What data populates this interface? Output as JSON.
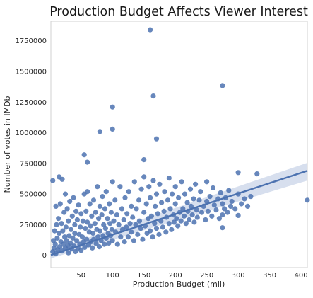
{
  "chart_data": {
    "type": "scatter",
    "title": "Production Budget Affects Viewer Interest",
    "xlabel": "Production Budget (mil)",
    "ylabel": "Number of votes in IMDb",
    "xlim": [
      2,
      410
    ],
    "ylim": [
      -100000,
      1910000
    ],
    "xticks": [
      50,
      100,
      150,
      200,
      250,
      300,
      350,
      400
    ],
    "yticks": [
      0,
      250000,
      500000,
      750000,
      1000000,
      1250000,
      1500000,
      1750000
    ],
    "grid": false,
    "point_color": "#4c72b0",
    "regression": {
      "x": [
        2,
        410
      ],
      "y": [
        2000,
        690000
      ],
      "ci_upper": [
        40000,
        755000
      ],
      "ci_lower": [
        -25000,
        610000
      ],
      "band_color": "#c9d4e8"
    },
    "highlighted_points": [
      [
        160,
        1840000
      ],
      [
        165,
        1300000
      ],
      [
        275,
        1385000
      ],
      [
        100,
        1210000
      ],
      [
        100,
        1030000
      ],
      [
        80,
        1010000
      ],
      [
        170,
        950000
      ],
      [
        55,
        820000
      ],
      [
        60,
        760000
      ],
      [
        150,
        780000
      ],
      [
        300,
        675000
      ],
      [
        330,
        665000
      ],
      [
        5,
        610000
      ],
      [
        15,
        640000
      ],
      [
        20,
        620000
      ],
      [
        410,
        450000
      ],
      [
        250,
        440000
      ],
      [
        275,
        330000
      ],
      [
        300,
        325000
      ],
      [
        275,
        225000
      ]
    ],
    "points": [
      [
        5,
        30000
      ],
      [
        6,
        120000
      ],
      [
        7,
        60000
      ],
      [
        8,
        200000
      ],
      [
        9,
        90000
      ],
      [
        10,
        400000
      ],
      [
        10,
        15000
      ],
      [
        11,
        250000
      ],
      [
        12,
        140000
      ],
      [
        13,
        45000
      ],
      [
        14,
        300000
      ],
      [
        15,
        180000
      ],
      [
        16,
        70000
      ],
      [
        17,
        420000
      ],
      [
        18,
        110000
      ],
      [
        19,
        260000
      ],
      [
        20,
        35000
      ],
      [
        21,
        200000
      ],
      [
        22,
        90000
      ],
      [
        23,
        350000
      ],
      [
        24,
        150000
      ],
      [
        25,
        500000
      ],
      [
        25,
        60000
      ],
      [
        26,
        230000
      ],
      [
        27,
        120000
      ],
      [
        28,
        380000
      ],
      [
        29,
        80000
      ],
      [
        30,
        280000
      ],
      [
        30,
        20000
      ],
      [
        31,
        160000
      ],
      [
        32,
        440000
      ],
      [
        33,
        100000
      ],
      [
        34,
        210000
      ],
      [
        35,
        55000
      ],
      [
        36,
        320000
      ],
      [
        37,
        140000
      ],
      [
        38,
        470000
      ],
      [
        39,
        75000
      ],
      [
        40,
        250000
      ],
      [
        40,
        180000
      ],
      [
        41,
        30000
      ],
      [
        42,
        360000
      ],
      [
        43,
        120000
      ],
      [
        44,
        290000
      ],
      [
        45,
        60000
      ],
      [
        46,
        410000
      ],
      [
        47,
        170000
      ],
      [
        48,
        90000
      ],
      [
        49,
        230000
      ],
      [
        50,
        340000
      ],
      [
        50,
        40000
      ],
      [
        52,
        150000
      ],
      [
        53,
        280000
      ],
      [
        54,
        110000
      ],
      [
        55,
        500000
      ],
      [
        56,
        65000
      ],
      [
        57,
        220000
      ],
      [
        58,
        360000
      ],
      [
        59,
        130000
      ],
      [
        60,
        270000
      ],
      [
        60,
        520000
      ],
      [
        62,
        85000
      ],
      [
        63,
        190000
      ],
      [
        64,
        420000
      ],
      [
        65,
        240000
      ],
      [
        66,
        110000
      ],
      [
        67,
        320000
      ],
      [
        68,
        60000
      ],
      [
        69,
        180000
      ],
      [
        70,
        450000
      ],
      [
        70,
        130000
      ],
      [
        72,
        260000
      ],
      [
        73,
        350000
      ],
      [
        74,
        95000
      ],
      [
        75,
        210000
      ],
      [
        76,
        560000
      ],
      [
        77,
        150000
      ],
      [
        78,
        300000
      ],
      [
        79,
        70000
      ],
      [
        80,
        400000
      ],
      [
        80,
        200000
      ],
      [
        82,
        120000
      ],
      [
        83,
        330000
      ],
      [
        84,
        480000
      ],
      [
        85,
        160000
      ],
      [
        86,
        250000
      ],
      [
        87,
        90000
      ],
      [
        88,
        380000
      ],
      [
        89,
        220000
      ],
      [
        90,
        140000
      ],
      [
        90,
        520000
      ],
      [
        92,
        300000
      ],
      [
        93,
        180000
      ],
      [
        94,
        100000
      ],
      [
        95,
        420000
      ],
      [
        96,
        260000
      ],
      [
        97,
        160000
      ],
      [
        98,
        350000
      ],
      [
        99,
        210000
      ],
      [
        100,
        600000
      ],
      [
        100,
        120000
      ],
      [
        102,
        280000
      ],
      [
        104,
        450000
      ],
      [
        105,
        190000
      ],
      [
        107,
        330000
      ],
      [
        108,
        90000
      ],
      [
        110,
        250000
      ],
      [
        112,
        560000
      ],
      [
        113,
        150000
      ],
      [
        115,
        380000
      ],
      [
        116,
        210000
      ],
      [
        118,
        290000
      ],
      [
        119,
        110000
      ],
      [
        120,
        470000
      ],
      [
        122,
        230000
      ],
      [
        123,
        340000
      ],
      [
        125,
        150000
      ],
      [
        126,
        520000
      ],
      [
        128,
        260000
      ],
      [
        130,
        400000
      ],
      [
        130,
        190000
      ],
      [
        132,
        310000
      ],
      [
        134,
        120000
      ],
      [
        135,
        600000
      ],
      [
        137,
        250000
      ],
      [
        138,
        380000
      ],
      [
        140,
        170000
      ],
      [
        142,
        450000
      ],
      [
        143,
        280000
      ],
      [
        145,
        220000
      ],
      [
        146,
        540000
      ],
      [
        148,
        130000
      ],
      [
        150,
        350000
      ],
      [
        150,
        640000
      ],
      [
        152,
        240000
      ],
      [
        154,
        420000
      ],
      [
        155,
        180000
      ],
      [
        157,
        300000
      ],
      [
        158,
        560000
      ],
      [
        160,
        200000
      ],
      [
        160,
        470000
      ],
      [
        162,
        320000
      ],
      [
        164,
        150000
      ],
      [
        165,
        610000
      ],
      [
        167,
        260000
      ],
      [
        168,
        400000
      ],
      [
        170,
        220000
      ],
      [
        170,
        500000
      ],
      [
        172,
        340000
      ],
      [
        174,
        170000
      ],
      [
        175,
        580000
      ],
      [
        177,
        280000
      ],
      [
        178,
        430000
      ],
      [
        180,
        230000
      ],
      [
        182,
        360000
      ],
      [
        183,
        520000
      ],
      [
        185,
        190000
      ],
      [
        186,
        310000
      ],
      [
        188,
        450000
      ],
      [
        190,
        260000
      ],
      [
        190,
        630000
      ],
      [
        192,
        380000
      ],
      [
        194,
        210000
      ],
      [
        195,
        500000
      ],
      [
        197,
        330000
      ],
      [
        198,
        270000
      ],
      [
        200,
        420000
      ],
      [
        200,
        560000
      ],
      [
        202,
        300000
      ],
      [
        204,
        240000
      ],
      [
        205,
        470000
      ],
      [
        207,
        350000
      ],
      [
        209,
        280000
      ],
      [
        210,
        600000
      ],
      [
        212,
        380000
      ],
      [
        214,
        320000
      ],
      [
        215,
        500000
      ],
      [
        217,
        260000
      ],
      [
        219,
        430000
      ],
      [
        220,
        360000
      ],
      [
        222,
        290000
      ],
      [
        224,
        540000
      ],
      [
        225,
        400000
      ],
      [
        227,
        330000
      ],
      [
        229,
        460000
      ],
      [
        230,
        270000
      ],
      [
        232,
        580000
      ],
      [
        234,
        370000
      ],
      [
        235,
        310000
      ],
      [
        238,
        450000
      ],
      [
        240,
        520000
      ],
      [
        242,
        350000
      ],
      [
        245,
        400000
      ],
      [
        248,
        290000
      ],
      [
        250,
        600000
      ],
      [
        252,
        360000
      ],
      [
        255,
        480000
      ],
      [
        258,
        320000
      ],
      [
        260,
        550000
      ],
      [
        262,
        410000
      ],
      [
        265,
        370000
      ],
      [
        268,
        460000
      ],
      [
        270,
        300000
      ],
      [
        272,
        510000
      ],
      [
        275,
        420000
      ],
      [
        278,
        380000
      ],
      [
        280,
        470000
      ],
      [
        283,
        350000
      ],
      [
        285,
        530000
      ],
      [
        288,
        400000
      ],
      [
        290,
        440000
      ],
      [
        295,
        380000
      ],
      [
        300,
        500000
      ],
      [
        305,
        420000
      ],
      [
        310,
        460000
      ],
      [
        315,
        400000
      ],
      [
        320,
        480000
      ]
    ]
  }
}
